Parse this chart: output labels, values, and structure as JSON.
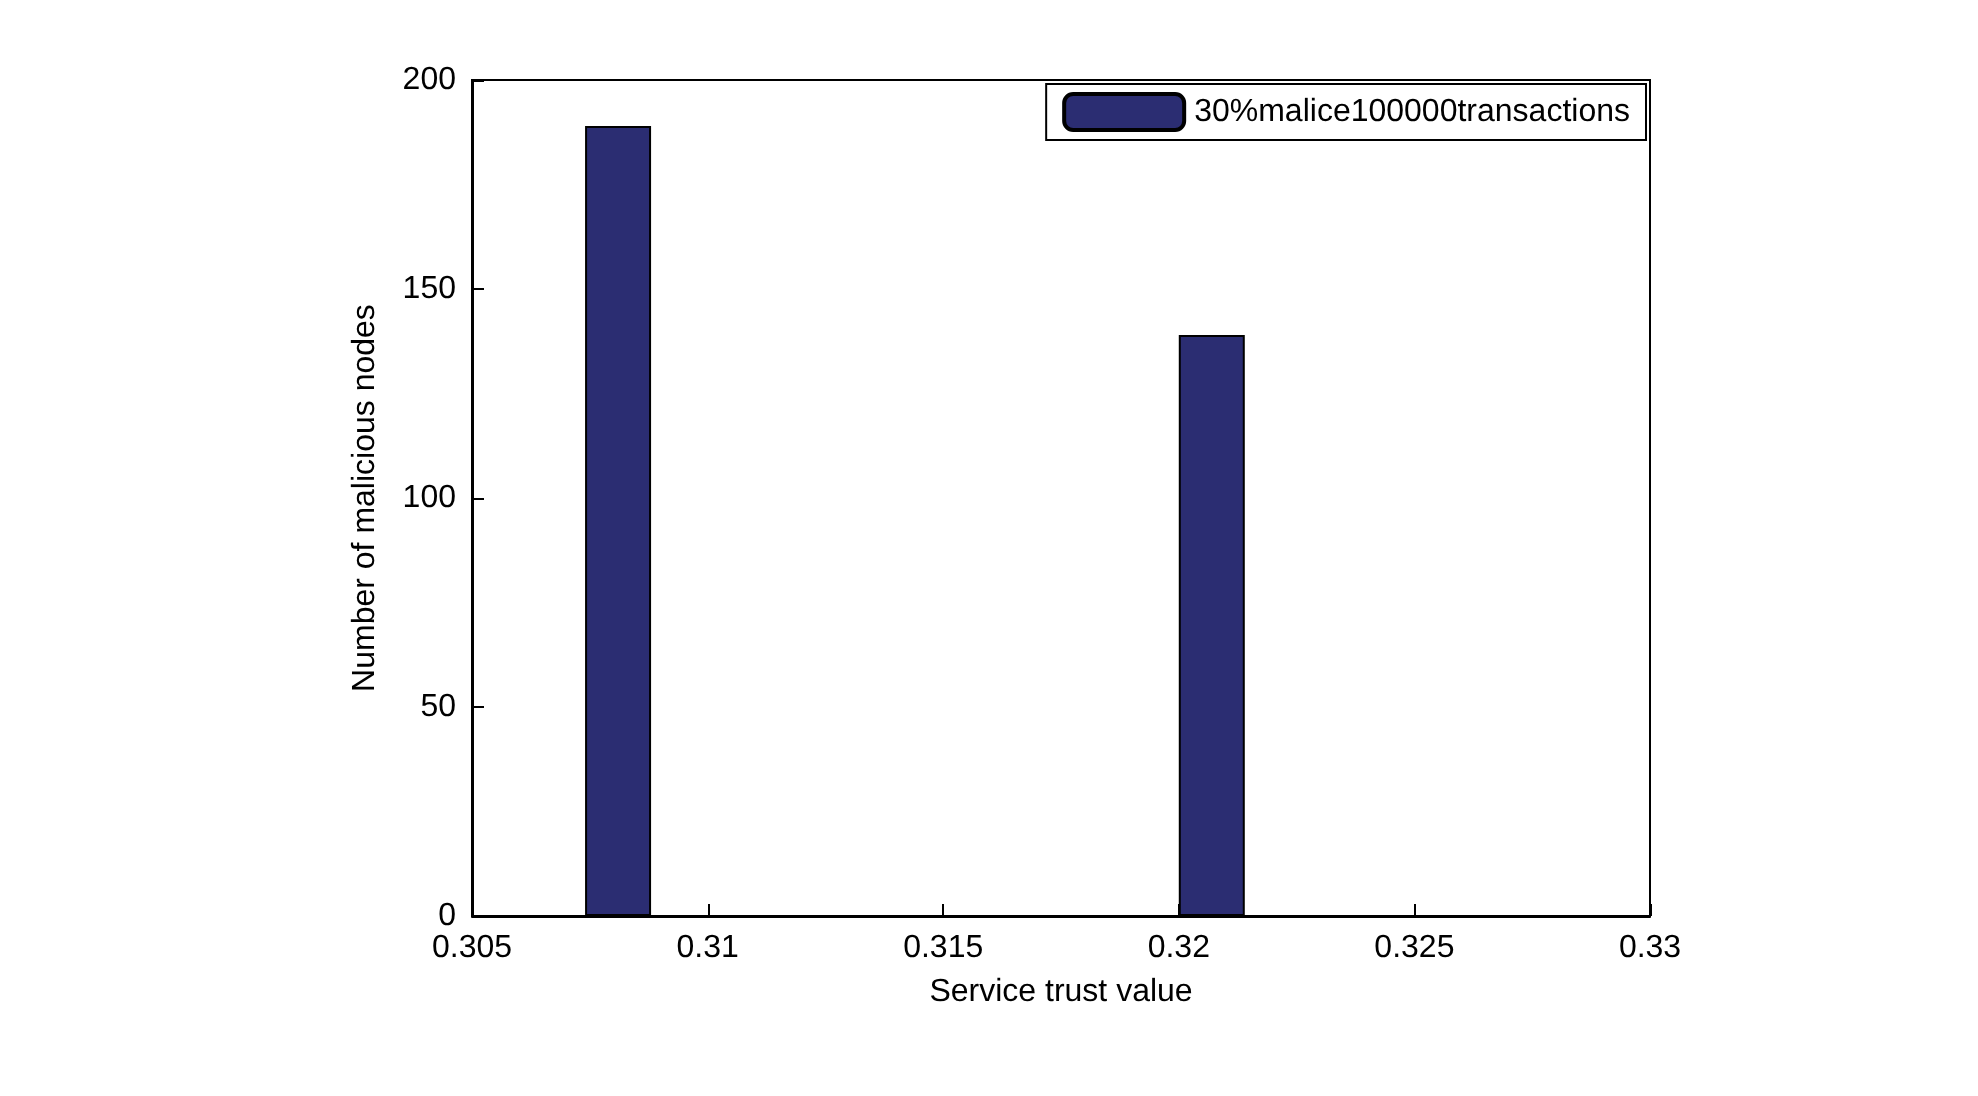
{
  "chart_data": {
    "type": "bar",
    "xlabel": "Service trust value",
    "ylabel": "Number of malicious nodes",
    "x": [
      0.3081,
      0.3207
    ],
    "series": [
      {
        "name": "30%malice100000transactions",
        "color": "#2b2d72",
        "values": [
          189,
          139
        ]
      }
    ],
    "xlim": [
      0.305,
      0.33
    ],
    "xticks": [
      0.305,
      0.31,
      0.315,
      0.32,
      0.325,
      0.33
    ],
    "ylim": [
      0,
      200
    ],
    "yticks": [
      0,
      50,
      100,
      150,
      200
    ],
    "grid": false,
    "legend": "top right"
  }
}
